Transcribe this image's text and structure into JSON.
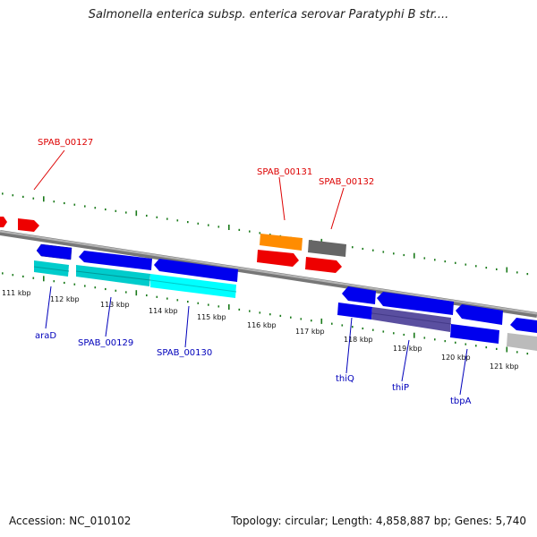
{
  "title": "Salmonella enterica subsp. enterica serovar Paratyphi B str....",
  "footer": {
    "accession": "Accession: NC_010102",
    "topology": "Topology: circular; Length: 4,858,887 bp; Genes: 5,740"
  },
  "colors": {
    "label_red": "#dd0000",
    "label_blue": "#0000bb",
    "backbone": "#888888",
    "gc_marks": "#1a7a1a",
    "gene_blue": "#0000ee",
    "gene_red": "#ee0000",
    "gene_cyan": "#00dddd",
    "gene_orange": "#ff8c00",
    "gene_gray": "#666666",
    "gene_purple": "#5a4fa0",
    "gene_light_gray": "#bbbbbb"
  },
  "axis_ticks": [
    "111 kbp",
    "112 kbp",
    "113 kbp",
    "114 kbp",
    "115 kbp",
    "116 kbp",
    "117 kbp",
    "118 kbp",
    "119 kbp",
    "120 kbp",
    "121 kbp"
  ],
  "top_labels": [
    "SPAB_00127",
    "SPAB_00131",
    "SPAB_00132"
  ],
  "bottom_labels": [
    "araD",
    "SPAB_00129",
    "SPAB_00130",
    "thiQ",
    "thiP",
    "tbpA"
  ]
}
